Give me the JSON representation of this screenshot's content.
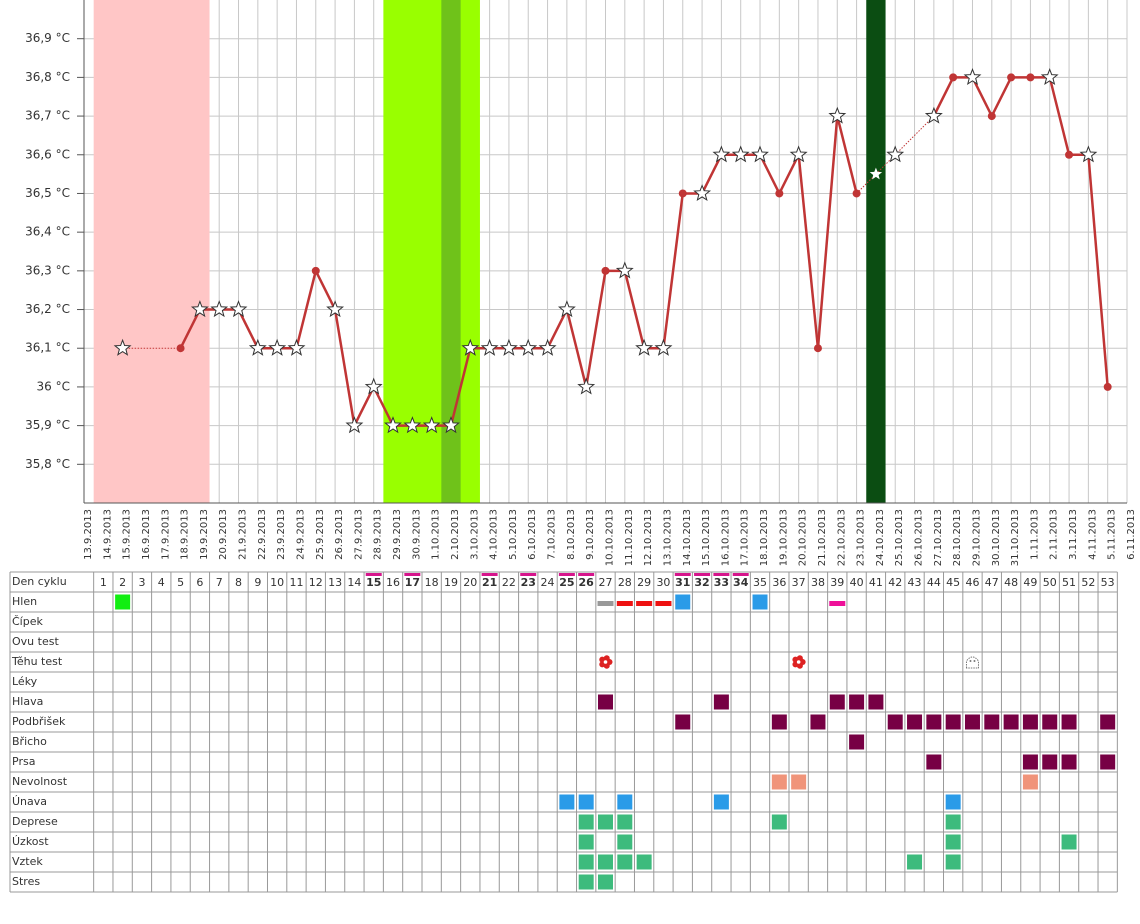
{
  "chart_data": {
    "type": "line",
    "color": "#c03535",
    "x": [
      "13.9.2013",
      "14.9.2013",
      "15.9.2013",
      "16.9.2013",
      "17.9.2013",
      "18.9.2013",
      "19.9.2013",
      "20.9.2013",
      "21.9.2013",
      "22.9.2013",
      "23.9.2013",
      "24.9.2013",
      "25.9.2013",
      "26.9.2013",
      "27.9.2013",
      "28.9.2013",
      "29.9.2013",
      "30.9.2013",
      "1.10.2013",
      "2.10.2013",
      "3.10.2013",
      "4.10.2013",
      "5.10.2013",
      "6.10.2013",
      "7.10.2013",
      "8.10.2013",
      "9.10.2013",
      "10.10.2013",
      "11.10.2013",
      "12.10.2013",
      "13.10.2013",
      "14.10.2013",
      "15.10.2013",
      "16.10.2013",
      "17.10.2013",
      "18.10.2013",
      "19.10.2013",
      "20.10.2013",
      "21.10.2013",
      "22.10.2013",
      "23.10.2013",
      "24.10.2013",
      "25.10.2013",
      "26.10.2013",
      "27.10.2013",
      "28.10.2013",
      "29.10.2013",
      "30.10.2013",
      "31.10.2013",
      "1.11.2013",
      "2.11.2013",
      "3.11.2013",
      "4.11.2013",
      "5.11.2013",
      "6.11.2013"
    ],
    "values": [
      null,
      null,
      36.1,
      null,
      null,
      36.1,
      36.2,
      36.2,
      36.2,
      36.1,
      36.1,
      36.1,
      36.3,
      36.2,
      35.9,
      36.0,
      35.9,
      35.9,
      35.9,
      35.9,
      36.1,
      36.1,
      36.1,
      36.1,
      36.1,
      36.2,
      36.0,
      36.3,
      36.3,
      36.1,
      36.1,
      36.5,
      36.5,
      36.6,
      36.6,
      36.6,
      36.5,
      36.6,
      36.1,
      36.7,
      36.5,
      36.55,
      36.6,
      null,
      36.7,
      36.8,
      36.8,
      36.7,
      36.8,
      36.8,
      36.8,
      36.6,
      36.6,
      36.0,
      null
    ],
    "markers": [
      null,
      null,
      "star",
      null,
      null,
      "dot",
      "star",
      "star",
      "star",
      "star",
      "star",
      "star",
      "dot",
      "star",
      "star",
      "star",
      "star",
      "star",
      "star",
      "star",
      "star",
      "star",
      "star",
      "star",
      "star",
      "star",
      "star",
      "dot",
      "star",
      "star",
      "star",
      "dot",
      "star",
      "star",
      "star",
      "star",
      "dot",
      "star",
      "dot",
      "star",
      "dot",
      "star-white",
      "star",
      null,
      "star",
      "dot",
      "star",
      "dot",
      "dot",
      "dot",
      "star",
      "dot",
      "star",
      "dot",
      null
    ],
    "ylim": [
      35.7,
      37.0
    ],
    "yticks": [
      {
        "value": 35.8,
        "label": "35,8 °C"
      },
      {
        "value": 35.9,
        "label": "35,9 °C"
      },
      {
        "value": 36.0,
        "label": "36 °C"
      },
      {
        "value": 36.1,
        "label": "36,1 °C"
      },
      {
        "value": 36.2,
        "label": "36,2 °C"
      },
      {
        "value": 36.3,
        "label": "36,3 °C"
      },
      {
        "value": 36.4,
        "label": "36,4 °C"
      },
      {
        "value": 36.5,
        "label": "36,5 °C"
      },
      {
        "value": 36.6,
        "label": "36,6 °C"
      },
      {
        "value": 36.7,
        "label": "36,7 °C"
      },
      {
        "value": 36.8,
        "label": "36,8 °C"
      },
      {
        "value": 36.9,
        "label": "36,9 °C"
      }
    ],
    "grid": true,
    "bands": [
      {
        "from": 1,
        "to": 6,
        "color": "#ffc6c6"
      },
      {
        "from": 16,
        "to": 20,
        "color": "#99ff00"
      },
      {
        "from": 19,
        "to": 19,
        "color": "#6fc21a"
      },
      {
        "from": 41,
        "to": 41,
        "color": "#0b4d12"
      }
    ]
  },
  "table": {
    "header_label": "Den cyklu",
    "days": [
      1,
      2,
      3,
      4,
      5,
      6,
      7,
      8,
      9,
      10,
      11,
      12,
      13,
      14,
      15,
      16,
      17,
      18,
      19,
      20,
      21,
      22,
      23,
      24,
      25,
      26,
      27,
      28,
      29,
      30,
      31,
      32,
      33,
      34,
      35,
      36,
      37,
      38,
      39,
      40,
      41,
      42,
      43,
      44,
      45,
      46,
      47,
      48,
      49,
      50,
      51,
      52,
      53
    ],
    "highlighted_days": [
      15,
      17,
      21,
      23,
      25,
      26,
      31,
      32,
      33,
      34
    ],
    "rows": [
      {
        "label": "Hlen",
        "cells": [
          {
            "day": 2,
            "color": "#11ee11",
            "shape": "box"
          },
          {
            "day": 27,
            "color": "#999999",
            "shape": "bar"
          },
          {
            "day": 28,
            "color": "#ee1111",
            "shape": "bar"
          },
          {
            "day": 29,
            "color": "#ee1111",
            "shape": "bar"
          },
          {
            "day": 30,
            "color": "#ee1111",
            "shape": "bar"
          },
          {
            "day": 31,
            "color": "#2a9be8",
            "shape": "box"
          },
          {
            "day": 35,
            "color": "#2a9be8",
            "shape": "box"
          },
          {
            "day": 39,
            "color": "#ee1199",
            "shape": "bar"
          }
        ]
      },
      {
        "label": "Čípek",
        "cells": []
      },
      {
        "label": "Ovu test",
        "cells": []
      },
      {
        "label": "Těhu test",
        "cells": [
          {
            "day": 27,
            "color": "#dd2222",
            "shape": "flower"
          },
          {
            "day": 37,
            "color": "#dd2222",
            "shape": "flower"
          },
          {
            "day": 46,
            "color": "#777777",
            "shape": "ghost"
          }
        ]
      },
      {
        "label": "Léky",
        "cells": []
      },
      {
        "label": "Hlava",
        "cells": [
          {
            "day": 27,
            "color": "#770044",
            "shape": "box"
          },
          {
            "day": 33,
            "color": "#770044",
            "shape": "box"
          },
          {
            "day": 39,
            "color": "#770044",
            "shape": "box"
          },
          {
            "day": 40,
            "color": "#770044",
            "shape": "box"
          },
          {
            "day": 41,
            "color": "#770044",
            "shape": "box"
          }
        ]
      },
      {
        "label": "Podbřišek",
        "cells": [
          {
            "day": 31,
            "color": "#770044",
            "shape": "box"
          },
          {
            "day": 36,
            "color": "#770044",
            "shape": "box"
          },
          {
            "day": 38,
            "color": "#770044",
            "shape": "box"
          },
          {
            "day": 42,
            "color": "#770044",
            "shape": "box"
          },
          {
            "day": 43,
            "color": "#770044",
            "shape": "box"
          },
          {
            "day": 44,
            "color": "#770044",
            "shape": "box"
          },
          {
            "day": 45,
            "color": "#770044",
            "shape": "box"
          },
          {
            "day": 46,
            "color": "#770044",
            "shape": "box"
          },
          {
            "day": 47,
            "color": "#770044",
            "shape": "box"
          },
          {
            "day": 48,
            "color": "#770044",
            "shape": "box"
          },
          {
            "day": 49,
            "color": "#770044",
            "shape": "box"
          },
          {
            "day": 50,
            "color": "#770044",
            "shape": "box"
          },
          {
            "day": 51,
            "color": "#770044",
            "shape": "box"
          },
          {
            "day": 53,
            "color": "#770044",
            "shape": "box"
          }
        ]
      },
      {
        "label": "Břicho",
        "cells": [
          {
            "day": 40,
            "color": "#770044",
            "shape": "box"
          }
        ]
      },
      {
        "label": "Prsa",
        "cells": [
          {
            "day": 44,
            "color": "#770044",
            "shape": "box"
          },
          {
            "day": 49,
            "color": "#770044",
            "shape": "box"
          },
          {
            "day": 50,
            "color": "#770044",
            "shape": "box"
          },
          {
            "day": 51,
            "color": "#770044",
            "shape": "box"
          },
          {
            "day": 53,
            "color": "#770044",
            "shape": "box"
          }
        ]
      },
      {
        "label": "Nevolnost",
        "cells": [
          {
            "day": 36,
            "color": "#f0947a",
            "shape": "box"
          },
          {
            "day": 37,
            "color": "#f0947a",
            "shape": "box"
          },
          {
            "day": 49,
            "color": "#f0947a",
            "shape": "box"
          }
        ]
      },
      {
        "label": "Únava",
        "cells": [
          {
            "day": 25,
            "color": "#2a9be8",
            "shape": "box"
          },
          {
            "day": 26,
            "color": "#2a9be8",
            "shape": "box"
          },
          {
            "day": 28,
            "color": "#2a9be8",
            "shape": "box"
          },
          {
            "day": 33,
            "color": "#2a9be8",
            "shape": "box"
          },
          {
            "day": 45,
            "color": "#2a9be8",
            "shape": "box"
          }
        ]
      },
      {
        "label": "Deprese",
        "cells": [
          {
            "day": 26,
            "color": "#3dbb7d",
            "shape": "box"
          },
          {
            "day": 27,
            "color": "#3dbb7d",
            "shape": "box"
          },
          {
            "day": 28,
            "color": "#3dbb7d",
            "shape": "box"
          },
          {
            "day": 36,
            "color": "#3dbb7d",
            "shape": "box"
          },
          {
            "day": 45,
            "color": "#3dbb7d",
            "shape": "box"
          }
        ]
      },
      {
        "label": "Úzkost",
        "cells": [
          {
            "day": 26,
            "color": "#3dbb7d",
            "shape": "box"
          },
          {
            "day": 28,
            "color": "#3dbb7d",
            "shape": "box"
          },
          {
            "day": 45,
            "color": "#3dbb7d",
            "shape": "box"
          },
          {
            "day": 51,
            "color": "#3dbb7d",
            "shape": "box"
          }
        ]
      },
      {
        "label": "Vztek",
        "cells": [
          {
            "day": 26,
            "color": "#3dbb7d",
            "shape": "box"
          },
          {
            "day": 27,
            "color": "#3dbb7d",
            "shape": "box"
          },
          {
            "day": 28,
            "color": "#3dbb7d",
            "shape": "box"
          },
          {
            "day": 29,
            "color": "#3dbb7d",
            "shape": "box"
          },
          {
            "day": 43,
            "color": "#3dbb7d",
            "shape": "box"
          },
          {
            "day": 45,
            "color": "#3dbb7d",
            "shape": "box"
          }
        ]
      },
      {
        "label": "Stres",
        "cells": [
          {
            "day": 26,
            "color": "#3dbb7d",
            "shape": "box"
          },
          {
            "day": 27,
            "color": "#3dbb7d",
            "shape": "box"
          }
        ]
      }
    ]
  }
}
